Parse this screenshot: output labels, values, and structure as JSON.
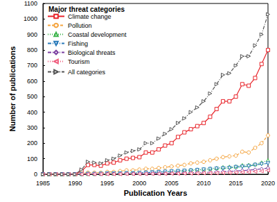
{
  "chart_data": {
    "type": "line",
    "x_label": "Publication Years",
    "y_label": "Number of publications",
    "legend_title": "Major threat categories",
    "legend": "upper left",
    "grid": false,
    "xlim": [
      1985,
      2020
    ],
    "xticks": [
      1985,
      1990,
      1995,
      2000,
      2005,
      2010,
      2015,
      2020
    ],
    "ylim": [
      0,
      1100
    ],
    "yticks": [
      0,
      100,
      200,
      300,
      400,
      500,
      600,
      700,
      800,
      900,
      1000,
      1100
    ],
    "x": [
      1985,
      1986,
      1987,
      1988,
      1989,
      1990,
      1991,
      1992,
      1993,
      1994,
      1995,
      1996,
      1997,
      1998,
      1999,
      2000,
      2001,
      2002,
      2003,
      2004,
      2005,
      2006,
      2007,
      2008,
      2009,
      2010,
      2011,
      2012,
      2013,
      2014,
      2015,
      2016,
      2017,
      2018,
      2019,
      2020
    ],
    "series": [
      {
        "name": "Climate change",
        "color": "#e8242a",
        "marker": "square",
        "line_style": "solid",
        "values": [
          0,
          0,
          0,
          0,
          0,
          0,
          20,
          60,
          60,
          55,
          70,
          75,
          90,
          100,
          105,
          110,
          140,
          140,
          160,
          185,
          200,
          240,
          270,
          290,
          310,
          330,
          370,
          420,
          470,
          470,
          500,
          580,
          570,
          620,
          710,
          800
        ]
      },
      {
        "name": "Pollution",
        "color": "#f5a540",
        "marker": "circle",
        "line_style": "dashed",
        "values": [
          0,
          0,
          0,
          0,
          0,
          0,
          5,
          10,
          10,
          10,
          15,
          15,
          20,
          25,
          25,
          30,
          35,
          35,
          40,
          45,
          50,
          55,
          60,
          70,
          75,
          80,
          90,
          100,
          110,
          115,
          120,
          145,
          140,
          170,
          200,
          250
        ]
      },
      {
        "name": "Coastal development",
        "color": "#3cb44b",
        "marker": "triangle-up",
        "line_style": "dotted",
        "values": [
          0,
          0,
          0,
          0,
          0,
          0,
          2,
          3,
          3,
          4,
          5,
          5,
          6,
          8,
          8,
          10,
          12,
          12,
          15,
          17,
          20,
          22,
          25,
          28,
          30,
          33,
          37,
          40,
          45,
          48,
          50,
          58,
          60,
          65,
          75,
          90
        ]
      },
      {
        "name": "Fishing",
        "color": "#2b7bba",
        "marker": "triangle-down",
        "line_style": "dashdot",
        "values": [
          0,
          0,
          0,
          0,
          0,
          0,
          1,
          2,
          2,
          3,
          4,
          4,
          5,
          6,
          6,
          8,
          10,
          12,
          14,
          16,
          18,
          20,
          22,
          24,
          27,
          30,
          33,
          36,
          38,
          40,
          46,
          48,
          52,
          60,
          65,
          70
        ]
      },
      {
        "name": "Biological threats",
        "color": "#7b3fa0",
        "marker": "diamond",
        "line_style": "dashdot",
        "values": [
          0,
          0,
          0,
          0,
          0,
          0,
          0,
          1,
          1,
          1,
          2,
          2,
          2,
          3,
          3,
          4,
          4,
          5,
          5,
          6,
          7,
          8,
          9,
          10,
          11,
          12,
          13,
          15,
          16,
          18,
          20,
          24,
          26,
          30,
          34,
          40
        ]
      },
      {
        "name": "Tourism",
        "color": "#f06080",
        "marker": "triangle-left",
        "line_style": "dotted",
        "values": [
          0,
          0,
          0,
          0,
          0,
          0,
          0,
          0,
          1,
          1,
          1,
          1,
          1,
          2,
          2,
          2,
          2,
          3,
          3,
          3,
          4,
          4,
          5,
          5,
          6,
          7,
          7,
          8,
          9,
          10,
          11,
          13,
          14,
          17,
          20,
          25
        ]
      },
      {
        "name": "All categories",
        "color": "#555555",
        "marker": "triangle-right",
        "line_style": "dashdot",
        "values": [
          0,
          0,
          0,
          0,
          0,
          0,
          30,
          80,
          75,
          70,
          90,
          100,
          120,
          140,
          150,
          160,
          200,
          200,
          230,
          260,
          290,
          330,
          360,
          400,
          430,
          470,
          520,
          580,
          640,
          650,
          700,
          760,
          760,
          830,
          900,
          1030
        ]
      }
    ]
  }
}
